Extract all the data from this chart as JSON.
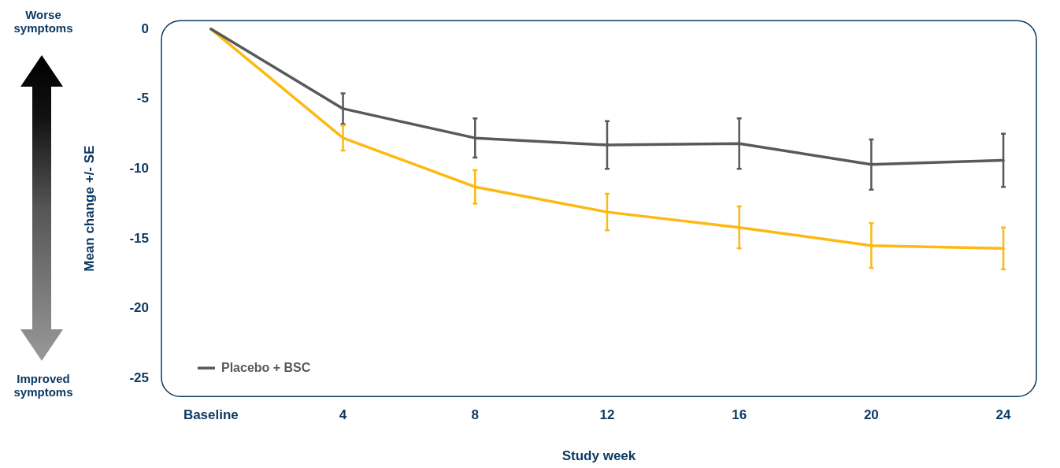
{
  "chart_data": {
    "type": "line",
    "xlabel": "Study week",
    "ylabel": "Mean change +/- SE",
    "x": [
      0,
      4,
      8,
      12,
      16,
      20,
      24
    ],
    "xlim": [
      -1.5,
      25
    ],
    "xticks": [
      {
        "value": 0,
        "label": "Baseline"
      },
      4,
      8,
      12,
      16,
      20,
      24
    ],
    "ylim": [
      -26.3,
      0.6
    ],
    "yticks": [
      0,
      -5,
      -10,
      -15,
      -20,
      -25
    ],
    "grid": false,
    "legend": "bottom left",
    "marker": "none",
    "line_style": "solid",
    "series": [
      {
        "name": "Placebo + BSC",
        "color": "#58595b",
        "values": [
          0,
          -5.7,
          -7.8,
          -8.3,
          -8.2,
          -9.7,
          -9.4
        ],
        "errors": [
          null,
          1.1,
          1.4,
          1.7,
          1.8,
          1.8,
          1.9
        ]
      },
      {
        "color": "#fdb913",
        "values": [
          0,
          -7.8,
          -11.3,
          -13.1,
          -14.2,
          -15.5,
          -15.7
        ],
        "errors": [
          null,
          0.9,
          1.2,
          1.3,
          1.5,
          1.6,
          1.5
        ]
      }
    ],
    "annotations": [
      "Worse symptoms",
      "Improved symptoms"
    ]
  }
}
